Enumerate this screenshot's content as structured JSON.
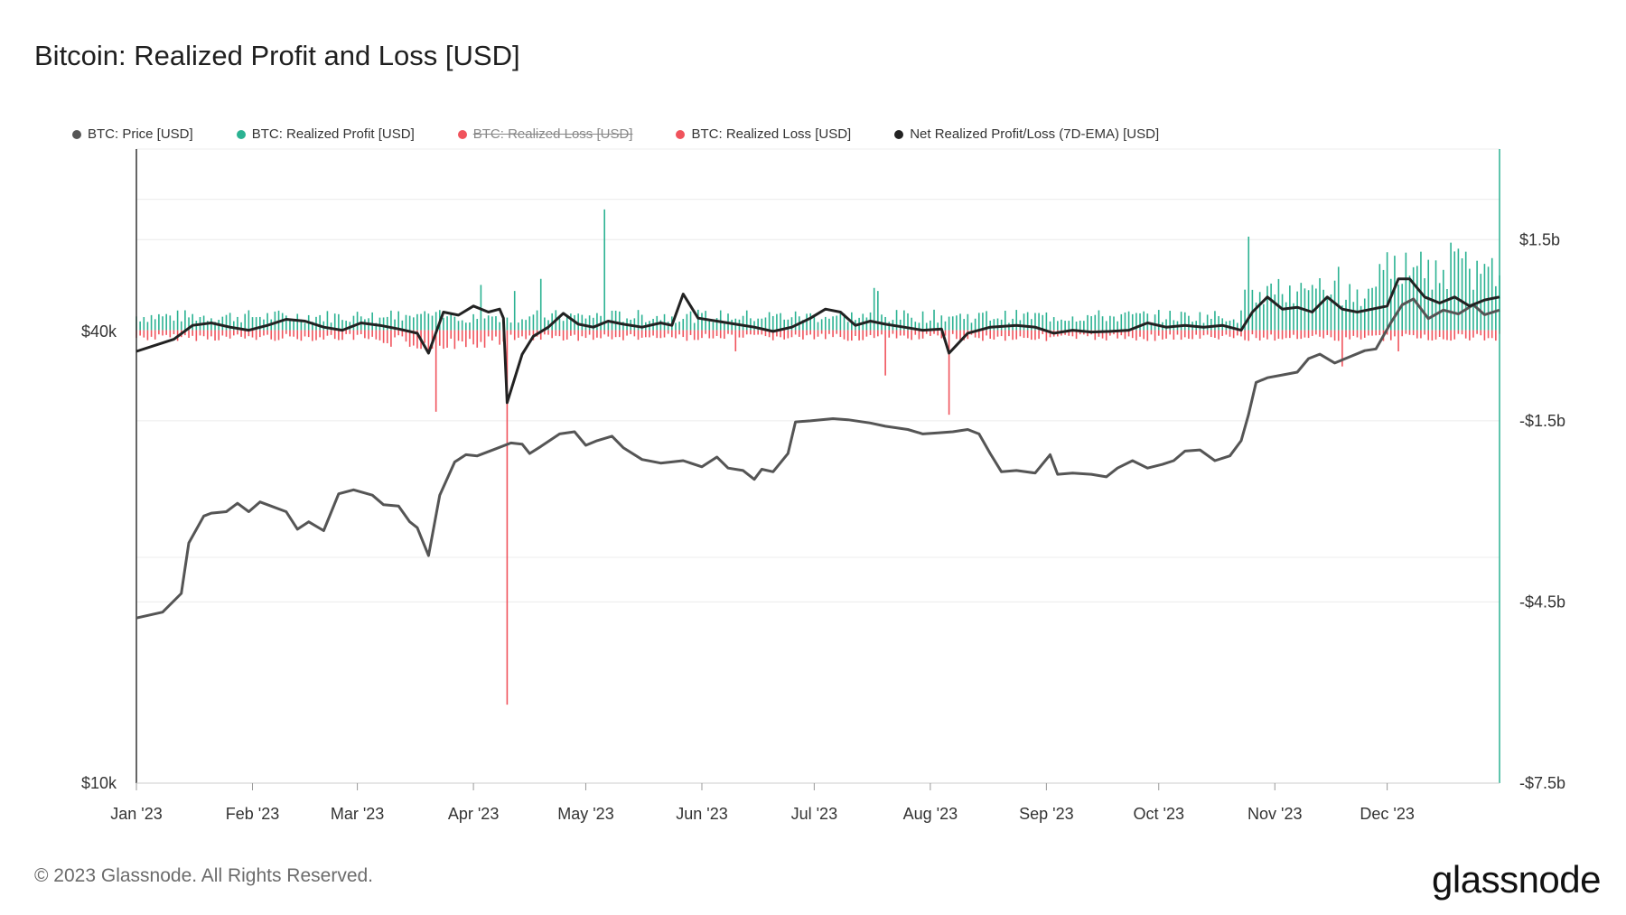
{
  "title": "Bitcoin: Realized Profit and Loss [USD]",
  "footer": "© 2023 Glassnode. All Rights Reserved.",
  "brand": "glassnode",
  "legend": [
    {
      "label": "BTC: Price [USD]",
      "color": "#555555",
      "hidden": false
    },
    {
      "label": "BTC: Realized Profit [USD]",
      "color": "#2bb292",
      "hidden": false
    },
    {
      "label": "BTC: Realized Loss [USD]",
      "color": "#f0535c",
      "hidden": true
    },
    {
      "label": "BTC: Realized Loss [USD]",
      "color": "#f0535c",
      "hidden": false
    },
    {
      "label": "Net Realized Profit/Loss (7D-EMA) [USD]",
      "color": "#222222",
      "hidden": false
    }
  ],
  "chart_data": {
    "type": "bar+line",
    "title": "Bitcoin: Realized Profit and Loss [USD]",
    "x_ticks": [
      "Jan '23",
      "Feb '23",
      "Mar '23",
      "Apr '23",
      "May '23",
      "Jun '23",
      "Jul '23",
      "Aug '23",
      "Sep '23",
      "Oct '23",
      "Nov '23",
      "Dec '23"
    ],
    "x_range": [
      "2023-01-01",
      "2023-12-30"
    ],
    "left_axis": {
      "scale": "log",
      "ticks": [
        "$10k",
        "$40k"
      ],
      "tick_values": [
        10000,
        40000
      ],
      "range": [
        10000,
        70000
      ]
    },
    "right_axis": {
      "scale": "linear",
      "ticks": [
        "$1.5b",
        "-$1.5b",
        "-$4.5b",
        "-$7.5b"
      ],
      "tick_values": [
        1.5,
        -1.5,
        -4.5,
        -7.5
      ],
      "unit": "billion USD",
      "range": [
        -7.5,
        3.0
      ]
    },
    "series": [
      {
        "name": "BTC: Price [USD]",
        "axis": "left",
        "kind": "line",
        "color": "#555555",
        "points": [
          [
            0,
            16600
          ],
          [
            7,
            16900
          ],
          [
            12,
            17900
          ],
          [
            14,
            20900
          ],
          [
            18,
            22700
          ],
          [
            20,
            22900
          ],
          [
            24,
            23000
          ],
          [
            27,
            23600
          ],
          [
            30,
            23000
          ],
          [
            33,
            23700
          ],
          [
            36,
            23400
          ],
          [
            40,
            23000
          ],
          [
            43,
            21800
          ],
          [
            46,
            22300
          ],
          [
            50,
            21700
          ],
          [
            54,
            24300
          ],
          [
            58,
            24600
          ],
          [
            63,
            24200
          ],
          [
            66,
            23500
          ],
          [
            70,
            23400
          ],
          [
            73,
            22300
          ],
          [
            75,
            21900
          ],
          [
            78,
            20100
          ],
          [
            81,
            24200
          ],
          [
            85,
            26800
          ],
          [
            88,
            27400
          ],
          [
            91,
            27300
          ],
          [
            96,
            27900
          ],
          [
            100,
            28400
          ],
          [
            103,
            28300
          ],
          [
            105,
            27500
          ],
          [
            108,
            28100
          ],
          [
            113,
            29200
          ],
          [
            117,
            29400
          ],
          [
            120,
            28200
          ],
          [
            123,
            28600
          ],
          [
            127,
            29000
          ],
          [
            130,
            28000
          ],
          [
            135,
            27000
          ],
          [
            140,
            26700
          ],
          [
            146,
            26900
          ],
          [
            151,
            26400
          ],
          [
            155,
            27200
          ],
          [
            158,
            26300
          ],
          [
            162,
            26100
          ],
          [
            165,
            25400
          ],
          [
            167,
            26200
          ],
          [
            170,
            26000
          ],
          [
            174,
            27500
          ],
          [
            176,
            30300
          ],
          [
            180,
            30400
          ],
          [
            186,
            30600
          ],
          [
            190,
            30500
          ],
          [
            196,
            30200
          ],
          [
            200,
            29900
          ],
          [
            206,
            29600
          ],
          [
            210,
            29200
          ],
          [
            214,
            29300
          ],
          [
            218,
            29400
          ],
          [
            222,
            29600
          ],
          [
            225,
            29200
          ],
          [
            228,
            27500
          ],
          [
            231,
            26000
          ],
          [
            235,
            26100
          ],
          [
            240,
            25900
          ],
          [
            244,
            27400
          ],
          [
            246,
            25800
          ],
          [
            250,
            25900
          ],
          [
            255,
            25800
          ],
          [
            259,
            25600
          ],
          [
            262,
            26300
          ],
          [
            266,
            26900
          ],
          [
            270,
            26300
          ],
          [
            274,
            26600
          ],
          [
            277,
            26900
          ],
          [
            280,
            27700
          ],
          [
            284,
            27800
          ],
          [
            288,
            26900
          ],
          [
            292,
            27300
          ],
          [
            295,
            28600
          ],
          [
            297,
            31000
          ],
          [
            299,
            34200
          ],
          [
            302,
            34700
          ],
          [
            306,
            35000
          ],
          [
            310,
            35300
          ],
          [
            313,
            36800
          ],
          [
            316,
            37300
          ],
          [
            320,
            36300
          ],
          [
            324,
            37000
          ],
          [
            328,
            37700
          ],
          [
            331,
            37900
          ],
          [
            335,
            41100
          ],
          [
            338,
            43400
          ],
          [
            341,
            44200
          ],
          [
            345,
            41600
          ],
          [
            349,
            42700
          ],
          [
            353,
            42200
          ],
          [
            357,
            43400
          ],
          [
            360,
            42100
          ],
          [
            364,
            42700
          ]
        ]
      },
      {
        "name": "BTC: Realized Profit [USD]",
        "axis": "right",
        "kind": "bar",
        "color": "#2bb292"
      },
      {
        "name": "BTC: Realized Loss [USD]",
        "axis": "right",
        "kind": "bar",
        "color": "#f0535c"
      },
      {
        "name": "Net Realized Profit/Loss (7D-EMA) [USD]",
        "axis": "right",
        "kind": "line",
        "color": "#222222",
        "points": [
          [
            0,
            -0.35
          ],
          [
            10,
            -0.15
          ],
          [
            15,
            0.08
          ],
          [
            20,
            0.12
          ],
          [
            25,
            0.05
          ],
          [
            30,
            0.0
          ],
          [
            35,
            0.08
          ],
          [
            40,
            0.18
          ],
          [
            45,
            0.15
          ],
          [
            50,
            0.05
          ],
          [
            55,
            0.0
          ],
          [
            60,
            0.12
          ],
          [
            65,
            0.08
          ],
          [
            70,
            0.02
          ],
          [
            75,
            -0.05
          ],
          [
            78,
            -0.38
          ],
          [
            82,
            0.3
          ],
          [
            86,
            0.25
          ],
          [
            90,
            0.4
          ],
          [
            94,
            0.3
          ],
          [
            97,
            0.35
          ],
          [
            98,
            0.2
          ],
          [
            99,
            -1.2
          ],
          [
            103,
            -0.4
          ],
          [
            106,
            -0.1
          ],
          [
            110,
            0.05
          ],
          [
            114,
            0.28
          ],
          [
            118,
            0.1
          ],
          [
            122,
            0.05
          ],
          [
            126,
            0.15
          ],
          [
            130,
            0.1
          ],
          [
            135,
            0.05
          ],
          [
            140,
            0.12
          ],
          [
            143,
            0.08
          ],
          [
            146,
            0.6
          ],
          [
            150,
            0.2
          ],
          [
            155,
            0.15
          ],
          [
            160,
            0.1
          ],
          [
            165,
            0.05
          ],
          [
            170,
            -0.02
          ],
          [
            175,
            0.05
          ],
          [
            180,
            0.2
          ],
          [
            184,
            0.35
          ],
          [
            188,
            0.3
          ],
          [
            192,
            0.08
          ],
          [
            196,
            0.15
          ],
          [
            200,
            0.1
          ],
          [
            205,
            0.05
          ],
          [
            210,
            0.0
          ],
          [
            215,
            0.02
          ],
          [
            217,
            -0.38
          ],
          [
            222,
            -0.05
          ],
          [
            228,
            0.05
          ],
          [
            235,
            0.08
          ],
          [
            240,
            0.05
          ],
          [
            245,
            -0.05
          ],
          [
            250,
            0.0
          ],
          [
            255,
            -0.03
          ],
          [
            260,
            -0.02
          ],
          [
            265,
            0.0
          ],
          [
            270,
            0.12
          ],
          [
            275,
            0.05
          ],
          [
            280,
            0.08
          ],
          [
            285,
            0.05
          ],
          [
            290,
            0.08
          ],
          [
            295,
            0.0
          ],
          [
            298,
            0.3
          ],
          [
            302,
            0.55
          ],
          [
            306,
            0.35
          ],
          [
            310,
            0.38
          ],
          [
            314,
            0.3
          ],
          [
            318,
            0.55
          ],
          [
            322,
            0.35
          ],
          [
            326,
            0.3
          ],
          [
            330,
            0.35
          ],
          [
            334,
            0.4
          ],
          [
            337,
            0.85
          ],
          [
            340,
            0.85
          ],
          [
            344,
            0.55
          ],
          [
            348,
            0.45
          ],
          [
            352,
            0.55
          ],
          [
            356,
            0.4
          ],
          [
            360,
            0.5
          ],
          [
            364,
            0.55
          ]
        ]
      }
    ]
  }
}
